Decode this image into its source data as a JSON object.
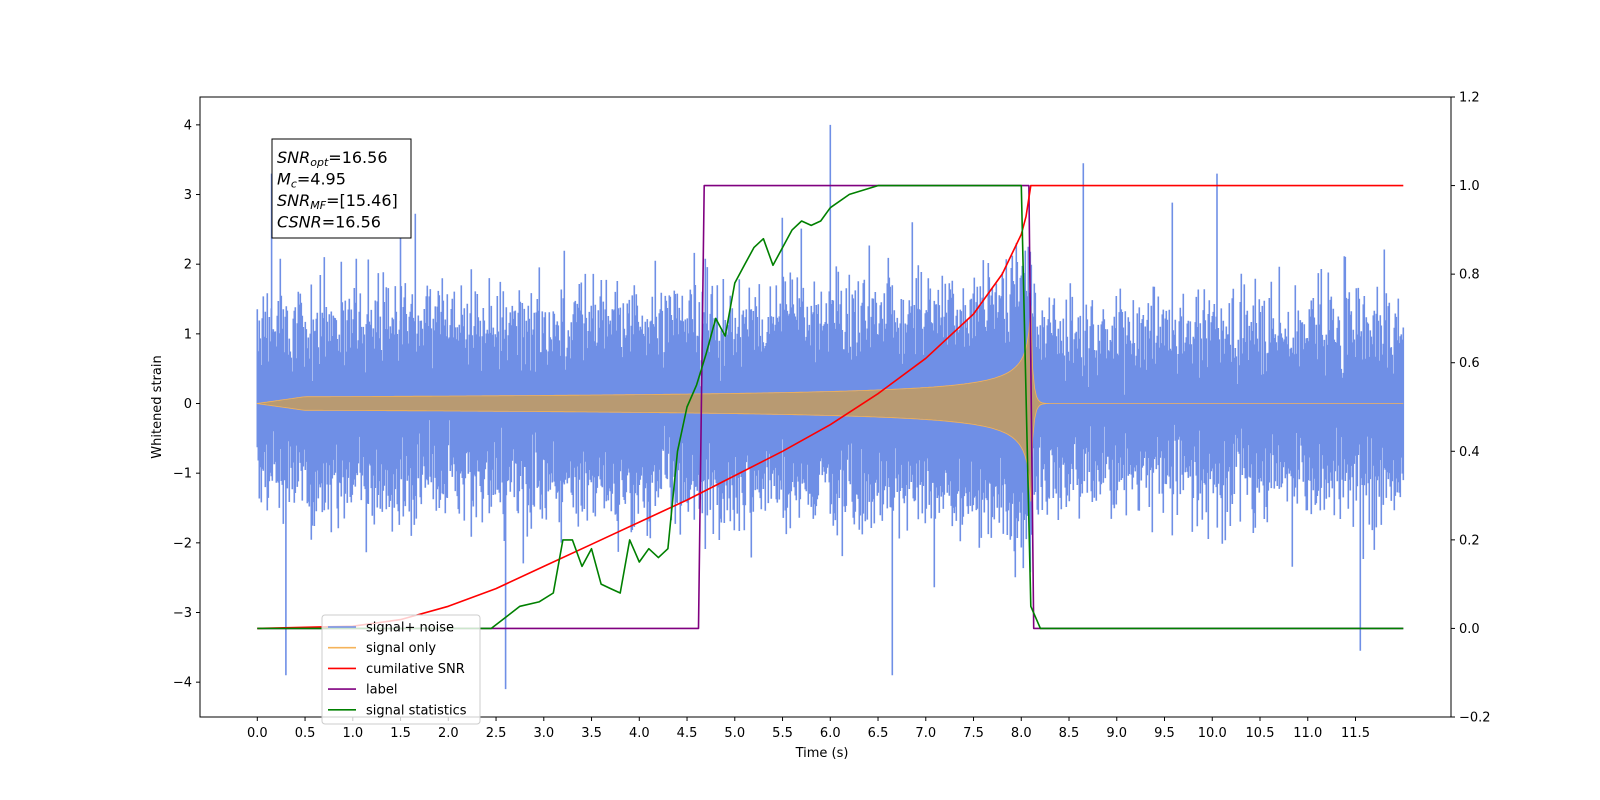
{
  "chart_data": {
    "type": "line",
    "title": "",
    "xlabel": "Time (s)",
    "ylabel": "Whitened strain",
    "y2label": "",
    "xlim": [
      -0.6,
      12.5
    ],
    "ylim": [
      -4.5,
      4.4
    ],
    "y2lim": [
      -0.2,
      1.2
    ],
    "x_ticks": [
      "0.0",
      "0.5",
      "1.0",
      "1.5",
      "2.0",
      "2.5",
      "3.0",
      "3.5",
      "4.0",
      "4.5",
      "5.0",
      "5.5",
      "6.0",
      "6.5",
      "7.0",
      "7.5",
      "8.0",
      "8.5",
      "9.0",
      "9.5",
      "10.0",
      "10.5",
      "11.0",
      "11.5"
    ],
    "y_ticks": [
      "−4",
      "−3",
      "−2",
      "−1",
      "0",
      "1",
      "2",
      "3",
      "4"
    ],
    "y2_ticks": [
      "−0.2",
      "0.0",
      "0.2",
      "0.4",
      "0.6",
      "0.8",
      "1.0",
      "1.2"
    ],
    "grid": false,
    "legend_position": "lower-left",
    "series": [
      {
        "name": "signal+ noise",
        "color": "#6f8fe6",
        "axis": "left",
        "kind": "noise",
        "description_values": {
          "x_range": [
            0.0,
            12.0
          ],
          "typical_range": [
            -2.0,
            2.2
          ],
          "peaks": [
            [
              0.15,
              3.3
            ],
            [
              0.3,
              -3.9
            ],
            [
              1.5,
              3.3
            ],
            [
              2.6,
              -4.1
            ],
            [
              6.0,
              4.0
            ],
            [
              6.65,
              -3.9
            ],
            [
              8.65,
              3.45
            ],
            [
              10.05,
              3.3
            ],
            [
              11.55,
              -3.55
            ]
          ]
        }
      },
      {
        "name": "signal only",
        "color": "#f5b35a",
        "axis": "left",
        "kind": "chirp",
        "description_values": {
          "x_range": [
            0.0,
            12.0
          ],
          "merger_time": 8.1,
          "peak_amplitude": 1.1
        }
      },
      {
        "name": "cumilative SNR",
        "color": "#ff0000",
        "axis": "right",
        "x": [
          0.0,
          1.0,
          1.5,
          2.0,
          2.5,
          3.0,
          3.5,
          4.0,
          4.5,
          5.0,
          5.5,
          6.0,
          6.5,
          7.0,
          7.5,
          7.8,
          8.0,
          8.05,
          8.1,
          8.15,
          12.0
        ],
        "y": [
          0.0,
          0.005,
          0.02,
          0.05,
          0.09,
          0.14,
          0.19,
          0.24,
          0.29,
          0.345,
          0.4,
          0.46,
          0.53,
          0.61,
          0.71,
          0.8,
          0.89,
          0.93,
          1.0,
          1.0,
          1.0
        ]
      },
      {
        "name": "label",
        "color": "#800080",
        "axis": "right",
        "x": [
          0.0,
          4.62,
          4.68,
          8.08,
          8.13,
          12.0
        ],
        "y": [
          0.0,
          0.0,
          1.0,
          1.0,
          0.0,
          0.0
        ]
      },
      {
        "name": "signal statistics",
        "color": "#008000",
        "axis": "right",
        "x": [
          0.0,
          2.45,
          2.75,
          2.95,
          3.1,
          3.2,
          3.3,
          3.4,
          3.5,
          3.6,
          3.7,
          3.8,
          3.9,
          4.0,
          4.1,
          4.2,
          4.3,
          4.4,
          4.5,
          4.6,
          4.7,
          4.8,
          4.9,
          5.0,
          5.1,
          5.2,
          5.3,
          5.4,
          5.5,
          5.6,
          5.7,
          5.8,
          5.9,
          6.0,
          6.2,
          6.5,
          7.0,
          7.5,
          7.9,
          8.0,
          8.1,
          8.2,
          12.0
        ],
        "y": [
          0.0,
          0.0,
          0.05,
          0.06,
          0.08,
          0.2,
          0.2,
          0.14,
          0.18,
          0.1,
          0.09,
          0.08,
          0.2,
          0.15,
          0.18,
          0.16,
          0.18,
          0.4,
          0.5,
          0.55,
          0.62,
          0.7,
          0.66,
          0.78,
          0.82,
          0.86,
          0.88,
          0.82,
          0.86,
          0.9,
          0.92,
          0.91,
          0.92,
          0.95,
          0.98,
          1.0,
          1.0,
          1.0,
          1.0,
          1.0,
          0.05,
          0.0,
          0.0
        ]
      }
    ],
    "legend_entries": [
      "signal+ noise",
      "signal only",
      "cumilative SNR",
      "label",
      "signal statistics"
    ],
    "annotations": [
      {
        "prefix": "SNR",
        "sub": "opt",
        "suffix": "=16.56"
      },
      {
        "prefix": "M",
        "sub": "c",
        "suffix": "=4.95"
      },
      {
        "prefix": "SNR",
        "sub": "MF",
        "suffix": "=[15.46]"
      },
      {
        "prefix": "CSNR",
        "sub": "",
        "suffix": "=16.56"
      }
    ]
  }
}
